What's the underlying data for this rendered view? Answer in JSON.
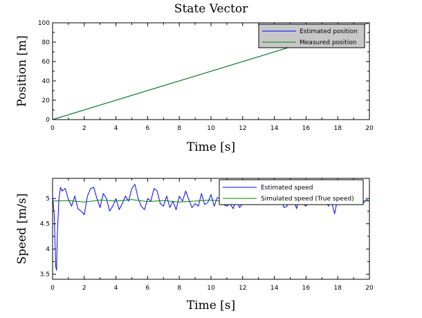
{
  "chart_data": [
    {
      "type": "line",
      "title": "State Vector",
      "xlabel": "Time  [s]",
      "ylabel": "Position  [m]",
      "xlim": [
        0,
        20
      ],
      "ylim": [
        0,
        100
      ],
      "xticks": [
        "0",
        "2",
        "4",
        "6",
        "8",
        "10",
        "12",
        "14",
        "16",
        "18",
        "20"
      ],
      "yticks": [
        "0",
        "20",
        "40",
        "60",
        "80",
        "100"
      ],
      "legend_placement": "top-right",
      "series": [
        {
          "name": "Estimated position",
          "color": "#0000ff",
          "x": [
            0,
            20
          ],
          "y": [
            0.0,
            100.0
          ]
        },
        {
          "name": "Measured position",
          "color": "#008000",
          "x": [
            0,
            20
          ],
          "y": [
            0.0,
            100.0
          ]
        }
      ]
    },
    {
      "type": "line",
      "title": "",
      "xlabel": "Time  [s]",
      "ylabel": "Speed  [m/s]",
      "xlim": [
        0,
        20
      ],
      "ylim": [
        3.4,
        5.4
      ],
      "xticks": [
        "0",
        "2",
        "4",
        "6",
        "8",
        "10",
        "12",
        "14",
        "16",
        "18",
        "20"
      ],
      "yticks": [
        "3.5",
        "4",
        "4.5",
        "5"
      ],
      "legend_placement": "top-right",
      "series": [
        {
          "name": "Estimated speed",
          "color": "#0000ff",
          "x": [
            0,
            0.1,
            0.2,
            0.25,
            0.3,
            0.4,
            0.5,
            0.6,
            0.8,
            1.0,
            1.2,
            1.4,
            1.6,
            1.8,
            2.0,
            2.2,
            2.4,
            2.6,
            2.8,
            3.0,
            3.2,
            3.4,
            3.6,
            3.8,
            4.0,
            4.2,
            4.4,
            4.6,
            4.8,
            5.0,
            5.2,
            5.4,
            5.6,
            5.8,
            6.0,
            6.2,
            6.4,
            6.6,
            6.8,
            7.0,
            7.2,
            7.4,
            7.6,
            7.8,
            8.0,
            8.2,
            8.4,
            8.6,
            8.8,
            9.0,
            9.2,
            9.4,
            9.6,
            9.8,
            10.0,
            10.2,
            10.4,
            10.6,
            10.8,
            11.0,
            11.2,
            11.4,
            11.6,
            11.8,
            12.0,
            12.2,
            12.4,
            12.6,
            12.8,
            13.0,
            13.2,
            13.4,
            13.6,
            13.8,
            14.0,
            14.2,
            14.4,
            14.6,
            14.8,
            15.0,
            15.2,
            15.4,
            15.6,
            15.8,
            16.0,
            16.2,
            16.4,
            16.6,
            16.8,
            17.0,
            17.2,
            17.4,
            17.6,
            17.8,
            18.0,
            18.2,
            18.4,
            18.6,
            18.8,
            19.0,
            19.2,
            19.4,
            19.6,
            19.8,
            20.0
          ],
          "y": [
            5.05,
            4.7,
            3.65,
            3.58,
            4.3,
            5.0,
            5.22,
            5.15,
            5.2,
            4.98,
            4.85,
            5.05,
            4.8,
            4.75,
            4.68,
            5.05,
            5.2,
            5.22,
            5.0,
            4.82,
            5.1,
            5.0,
            4.75,
            4.85,
            5.0,
            4.78,
            4.9,
            5.05,
            4.95,
            5.2,
            5.28,
            5.0,
            4.85,
            4.78,
            5.0,
            4.95,
            5.2,
            5.15,
            4.9,
            4.85,
            5.05,
            4.82,
            4.95,
            4.78,
            5.05,
            4.95,
            5.15,
            4.98,
            4.82,
            4.9,
            4.85,
            5.1,
            4.88,
            4.92,
            5.08,
            4.85,
            5.02,
            5.0,
            4.88,
            4.85,
            4.9,
            4.8,
            5.0,
            4.82,
            4.9,
            5.0,
            4.88,
            5.05,
            4.95,
            5.2,
            5.05,
            4.92,
            5.1,
            5.0,
            4.88,
            4.95,
            5.05,
            4.82,
            4.85,
            5.1,
            5.0,
            4.8,
            5.05,
            4.9,
            4.85,
            5.0,
            4.9,
            5.05,
            4.95,
            4.88,
            5.02,
            4.85,
            4.95,
            4.7,
            5.0,
            4.9,
            5.05,
            4.95,
            5.0,
            4.88,
            4.95,
            5.02,
            4.9,
            4.98,
            4.95
          ]
        },
        {
          "name": "Simulated speed (True speed)",
          "color": "#008000",
          "x": [
            0,
            1,
            2,
            3,
            4,
            5,
            6,
            7,
            8,
            9,
            10,
            11,
            12,
            13,
            14,
            15,
            16,
            17,
            18,
            19,
            20
          ],
          "y": [
            4.95,
            4.96,
            4.93,
            4.97,
            4.95,
            4.98,
            4.94,
            4.96,
            4.93,
            4.95,
            4.97,
            4.94,
            4.96,
            4.95,
            4.97,
            4.94,
            4.96,
            4.95,
            4.94,
            4.96,
            4.95
          ]
        }
      ]
    }
  ]
}
